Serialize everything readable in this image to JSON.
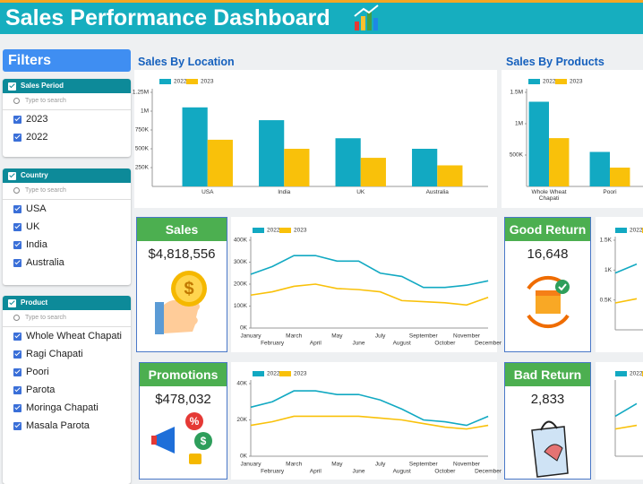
{
  "header": {
    "title": "Sales Performance Dashboard"
  },
  "filters": {
    "title": "Filters",
    "search_placeholder": "Type to search",
    "groups": [
      {
        "title": "Sales Period",
        "items": [
          "2023",
          "2022"
        ]
      },
      {
        "title": "Country",
        "items": [
          "USA",
          "UK",
          "India",
          "Australia"
        ]
      },
      {
        "title": "Product",
        "items": [
          "Whole Wheat Chapati",
          "Ragi Chapati",
          "Poori",
          "Parota",
          "Moringa Chapati",
          "Masala Parota"
        ]
      }
    ]
  },
  "kpis": [
    {
      "title": "Sales",
      "value": "$4,818,556"
    },
    {
      "title": "Promotions",
      "value": "$478,032"
    },
    {
      "title": "Good Return",
      "value": "16,648"
    },
    {
      "title": "Bad Return",
      "value": "2,833"
    }
  ],
  "chart_data": [
    {
      "type": "bar",
      "title": "Sales By Location",
      "categories": [
        "USA",
        "India",
        "UK",
        "Australia"
      ],
      "series": [
        {
          "name": "2022",
          "color": "#12a9c2",
          "values": [
            1050000,
            880000,
            640000,
            500000
          ]
        },
        {
          "name": "2023",
          "color": "#f9c10a",
          "values": [
            620000,
            500000,
            380000,
            280000
          ]
        }
      ],
      "ylim": [
        0,
        1250000
      ],
      "yticks": [
        {
          "value": 250000,
          "label": "250K"
        },
        {
          "value": 500000,
          "label": "500K"
        },
        {
          "value": 750000,
          "label": "750K"
        },
        {
          "value": 1000000,
          "label": "1M"
        },
        {
          "value": 1250000,
          "label": "1.25M"
        }
      ]
    },
    {
      "type": "bar",
      "title": "Sales By Products",
      "categories": [
        "Whole Wheat Chapati",
        "Poori"
      ],
      "series": [
        {
          "name": "2022",
          "color": "#12a9c2",
          "values": [
            1350000,
            550000
          ]
        },
        {
          "name": "2023",
          "color": "#f9c10a",
          "values": [
            770000,
            300000
          ]
        }
      ],
      "ylim": [
        0,
        1500000
      ],
      "yticks": [
        {
          "value": 500000,
          "label": "500K"
        },
        {
          "value": 1000000,
          "label": "1M"
        },
        {
          "value": 1500000,
          "label": "1.5M"
        }
      ]
    },
    {
      "type": "line",
      "categories": [
        "January",
        "February",
        "March",
        "April",
        "May",
        "June",
        "July",
        "August",
        "September",
        "October",
        "November",
        "December"
      ],
      "series": [
        {
          "name": "2022",
          "color": "#12a9c2",
          "values": [
            245000,
            280000,
            330000,
            330000,
            305000,
            305000,
            250000,
            235000,
            185000,
            185000,
            195000,
            215000
          ]
        },
        {
          "name": "2023",
          "color": "#f9c10a",
          "values": [
            150000,
            165000,
            190000,
            200000,
            180000,
            175000,
            165000,
            125000,
            120000,
            115000,
            105000,
            140000
          ]
        }
      ],
      "ylim": [
        0,
        400000
      ],
      "yticks": [
        {
          "value": 0,
          "label": "0K"
        },
        {
          "value": 100000,
          "label": "100K"
        },
        {
          "value": 200000,
          "label": "200K"
        },
        {
          "value": 300000,
          "label": "300K"
        },
        {
          "value": 400000,
          "label": "400K"
        }
      ]
    },
    {
      "type": "line",
      "categories": [
        "January",
        "February",
        "March",
        "April",
        "May",
        "June",
        "July",
        "August",
        "September",
        "October",
        "November",
        "December"
      ],
      "series": [
        {
          "name": "2022",
          "color": "#12a9c2",
          "values": [
            27000,
            30000,
            36000,
            36000,
            34000,
            34000,
            31000,
            26000,
            20000,
            19000,
            17000,
            22000
          ]
        },
        {
          "name": "2023",
          "color": "#f9c10a",
          "values": [
            17000,
            19000,
            22000,
            22000,
            22000,
            22000,
            21000,
            20000,
            18000,
            16000,
            15000,
            17000
          ]
        }
      ],
      "ylim": [
        0,
        40000
      ],
      "yticks": [
        {
          "value": 0,
          "label": "0K"
        },
        {
          "value": 20000,
          "label": "20K"
        },
        {
          "value": 40000,
          "label": "40K"
        }
      ]
    },
    {
      "type": "line",
      "categories": [
        null,
        null
      ],
      "series": [
        {
          "name": "2022",
          "color": "#12a9c2",
          "values": [
            950,
            1100
          ]
        },
        {
          "name": "2023",
          "color": "#f9c10a",
          "values": [
            450,
            520
          ]
        }
      ],
      "ylim": [
        0,
        1500
      ],
      "yticks": [
        {
          "value": 500,
          "label": "0.5K"
        },
        {
          "value": 1000,
          "label": "1K"
        },
        {
          "value": 1500,
          "label": "1.5K"
        }
      ]
    },
    {
      "type": "line",
      "categories": [
        null,
        null
      ],
      "series": [
        {
          "name": "2022",
          "color": "#12a9c2",
          "values": [
            220,
            290
          ]
        },
        {
          "name": "2023",
          "color": "#f9c10a",
          "values": [
            150,
            170
          ]
        }
      ],
      "ylim": [
        0,
        400
      ]
    }
  ]
}
